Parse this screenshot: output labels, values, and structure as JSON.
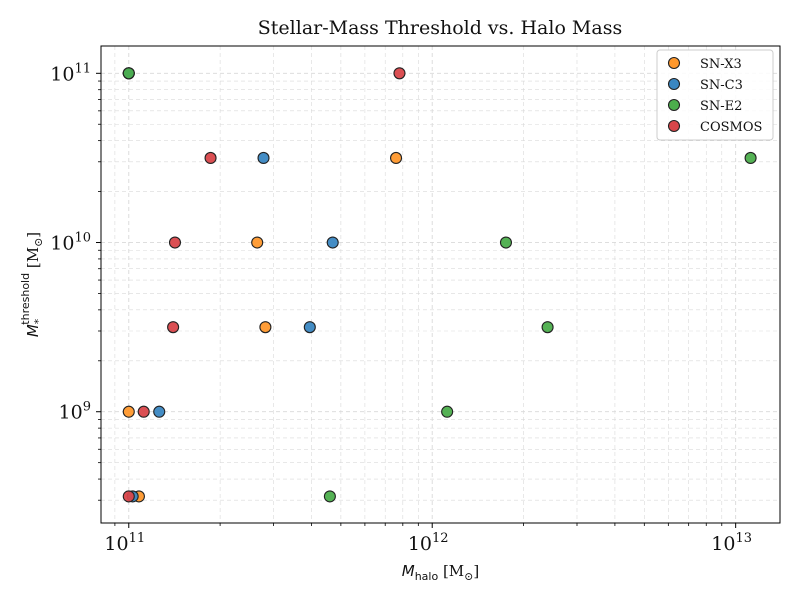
{
  "chart_data": {
    "type": "scatter",
    "title": "Stellar-Mass Threshold vs. Halo Mass",
    "xlabel": {
      "symbol": "M",
      "sub": "halo",
      "unit": "[M",
      "unit_sub": "⊙",
      "unit_end": "]"
    },
    "ylabel": {
      "symbol": "M",
      "sub": "*",
      "sup": "threshold",
      "unit": "[M",
      "unit_sub": "⊙",
      "unit_end": "]"
    },
    "x_scale": "log",
    "y_scale": "log",
    "xlim": [
      81000000000.0,
      14000000000000.0
    ],
    "ylim": [
      220000000.0,
      145000000000.0
    ],
    "grid": true,
    "legend_position": "top-right",
    "x_ticks": [
      {
        "value": 100000000000.0,
        "base": "10",
        "exp": "11"
      },
      {
        "value": 1000000000000.0,
        "base": "10",
        "exp": "12"
      },
      {
        "value": 10000000000000.0,
        "base": "10",
        "exp": "13"
      }
    ],
    "y_ticks": [
      {
        "value": 1000000000.0,
        "base": "10",
        "exp": "9"
      },
      {
        "value": 10000000000.0,
        "base": "10",
        "exp": "10"
      },
      {
        "value": 100000000000.0,
        "base": "10",
        "exp": "11"
      }
    ],
    "series": [
      {
        "name": "SN-X3",
        "color": "#ff982c",
        "points": [
          {
            "x": 108000000000.0,
            "y": 316000000.0
          },
          {
            "x": 100000000000.0,
            "y": 1000000000.0
          },
          {
            "x": 282000000000.0,
            "y": 3160000000.0
          },
          {
            "x": 265000000000.0,
            "y": 10000000000.0
          },
          {
            "x": 760000000000.0,
            "y": 31600000000.0
          },
          {
            "x": 100000000000.0,
            "y": 100000000000.0
          }
        ]
      },
      {
        "name": "SN-C3",
        "color": "#3a87c2",
        "points": [
          {
            "x": 103000000000.0,
            "y": 316000000.0
          },
          {
            "x": 126000000000.0,
            "y": 1000000000.0
          },
          {
            "x": 395000000000.0,
            "y": 3160000000.0
          },
          {
            "x": 470000000000.0,
            "y": 10000000000.0
          },
          {
            "x": 278000000000.0,
            "y": 31600000000.0
          },
          {
            "x": 100000000000.0,
            "y": 100000000000.0
          }
        ]
      },
      {
        "name": "SN-E2",
        "color": "#4cae4c",
        "points": [
          {
            "x": 460000000000.0,
            "y": 316000000.0
          },
          {
            "x": 1120000000000.0,
            "y": 1000000000.0
          },
          {
            "x": 2400000000000.0,
            "y": 3160000000.0
          },
          {
            "x": 1750000000000.0,
            "y": 10000000000.0
          },
          {
            "x": 11200000000000.0,
            "y": 31600000000.0
          },
          {
            "x": 100000000000.0,
            "y": 100000000000.0
          }
        ]
      },
      {
        "name": "COSMOS",
        "color": "#d9464a",
        "points": [
          {
            "x": 100000000000.0,
            "y": 316000000.0
          },
          {
            "x": 112000000000.0,
            "y": 1000000000.0
          },
          {
            "x": 140000000000.0,
            "y": 3160000000.0
          },
          {
            "x": 142000000000.0,
            "y": 10000000000.0
          },
          {
            "x": 186000000000.0,
            "y": 31600000000.0
          },
          {
            "x": 780000000000.0,
            "y": 100000000000.0
          }
        ]
      }
    ]
  }
}
